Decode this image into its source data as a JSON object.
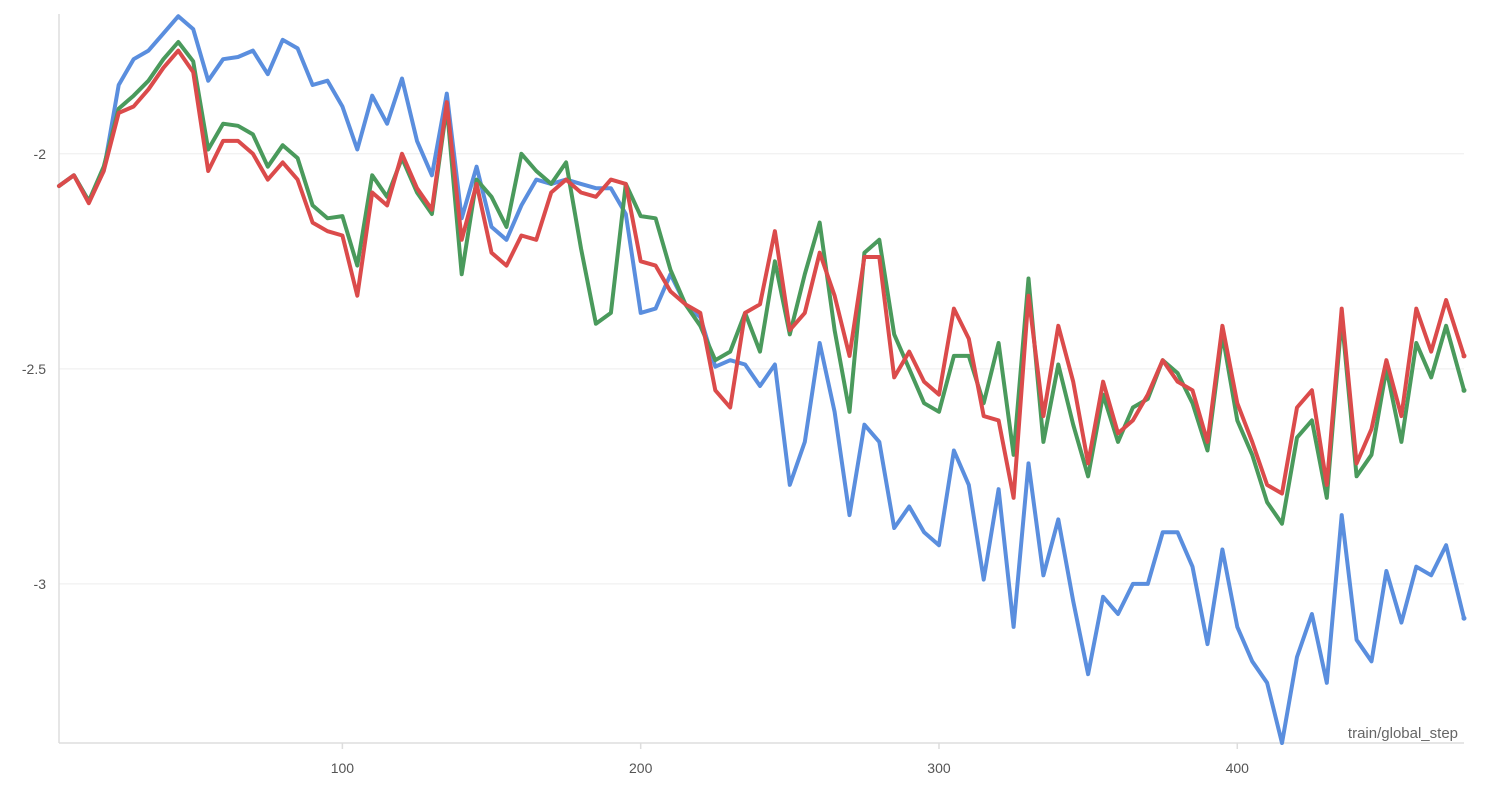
{
  "chart_data": {
    "type": "line",
    "xlabel": "train/global_step",
    "ylabel": "",
    "xlim": [
      5,
      476
    ],
    "ylim": [
      -3.37,
      -1.675
    ],
    "x_ticks": [
      100,
      200,
      300,
      400
    ],
    "x_tick_labels": [
      "100",
      "200",
      "300",
      "400"
    ],
    "y_ticks": [
      -2,
      -2.5,
      -3
    ],
    "y_tick_labels": [
      "-2",
      "-2.5",
      "-3"
    ],
    "grid": "horizontal",
    "legend": "none",
    "series": [
      {
        "color": "#5a8ede",
        "points": [
          [
            5,
            -2.075
          ],
          [
            10,
            -2.05
          ],
          [
            15,
            -2.11
          ],
          [
            20,
            -2.04
          ],
          [
            25,
            -1.84
          ],
          [
            30,
            -1.78
          ],
          [
            35,
            -1.76
          ],
          [
            40,
            -1.72
          ],
          [
            45,
            -1.68
          ],
          [
            50,
            -1.71
          ],
          [
            55,
            -1.83
          ],
          [
            60,
            -1.78
          ],
          [
            65,
            -1.775
          ],
          [
            70,
            -1.76
          ],
          [
            75,
            -1.815
          ],
          [
            80,
            -1.735
          ],
          [
            85,
            -1.755
          ],
          [
            90,
            -1.84
          ],
          [
            95,
            -1.83
          ],
          [
            100,
            -1.89
          ],
          [
            105,
            -1.99
          ],
          [
            110,
            -1.865
          ],
          [
            115,
            -1.93
          ],
          [
            120,
            -1.825
          ],
          [
            125,
            -1.97
          ],
          [
            130,
            -2.05
          ],
          [
            135,
            -1.86
          ],
          [
            140,
            -2.15
          ],
          [
            145,
            -2.03
          ],
          [
            150,
            -2.17
          ],
          [
            155,
            -2.2
          ],
          [
            160,
            -2.12
          ],
          [
            165,
            -2.06
          ],
          [
            170,
            -2.07
          ],
          [
            175,
            -2.06
          ],
          [
            180,
            -2.07
          ],
          [
            185,
            -2.08
          ],
          [
            190,
            -2.08
          ],
          [
            195,
            -2.14
          ],
          [
            200,
            -2.37
          ],
          [
            205,
            -2.36
          ],
          [
            210,
            -2.28
          ],
          [
            215,
            -2.35
          ],
          [
            220,
            -2.38
          ],
          [
            225,
            -2.495
          ],
          [
            230,
            -2.48
          ],
          [
            235,
            -2.49
          ],
          [
            240,
            -2.54
          ],
          [
            245,
            -2.49
          ],
          [
            250,
            -2.77
          ],
          [
            255,
            -2.67
          ],
          [
            260,
            -2.44
          ],
          [
            265,
            -2.6
          ],
          [
            270,
            -2.84
          ],
          [
            275,
            -2.63
          ],
          [
            280,
            -2.67
          ],
          [
            285,
            -2.87
          ],
          [
            290,
            -2.82
          ],
          [
            295,
            -2.88
          ],
          [
            300,
            -2.91
          ],
          [
            305,
            -2.69
          ],
          [
            310,
            -2.77
          ],
          [
            315,
            -2.99
          ],
          [
            320,
            -2.78
          ],
          [
            325,
            -3.1
          ],
          [
            330,
            -2.72
          ],
          [
            335,
            -2.98
          ],
          [
            340,
            -2.85
          ],
          [
            345,
            -3.04
          ],
          [
            350,
            -3.21
          ],
          [
            355,
            -3.03
          ],
          [
            360,
            -3.07
          ],
          [
            365,
            -3.0
          ],
          [
            370,
            -3.0
          ],
          [
            375,
            -2.88
          ],
          [
            380,
            -2.88
          ],
          [
            385,
            -2.96
          ],
          [
            390,
            -3.14
          ],
          [
            395,
            -2.92
          ],
          [
            400,
            -3.1
          ],
          [
            405,
            -3.18
          ],
          [
            410,
            -3.23
          ],
          [
            415,
            -3.37
          ],
          [
            420,
            -3.17
          ],
          [
            425,
            -3.07
          ],
          [
            430,
            -3.23
          ],
          [
            435,
            -2.84
          ],
          [
            440,
            -3.13
          ],
          [
            445,
            -3.18
          ],
          [
            450,
            -2.97
          ],
          [
            455,
            -3.09
          ],
          [
            460,
            -2.96
          ],
          [
            465,
            -2.98
          ],
          [
            470,
            -2.91
          ],
          [
            476,
            -3.08
          ]
        ]
      },
      {
        "color": "#4a9a5c",
        "points": [
          [
            5,
            -2.075
          ],
          [
            10,
            -2.05
          ],
          [
            15,
            -2.11
          ],
          [
            20,
            -2.03
          ],
          [
            25,
            -1.895
          ],
          [
            30,
            -1.865
          ],
          [
            35,
            -1.83
          ],
          [
            40,
            -1.78
          ],
          [
            45,
            -1.74
          ],
          [
            50,
            -1.785
          ],
          [
            55,
            -1.99
          ],
          [
            60,
            -1.93
          ],
          [
            65,
            -1.935
          ],
          [
            70,
            -1.955
          ],
          [
            75,
            -2.03
          ],
          [
            80,
            -1.98
          ],
          [
            85,
            -2.01
          ],
          [
            90,
            -2.12
          ],
          [
            95,
            -2.15
          ],
          [
            100,
            -2.145
          ],
          [
            105,
            -2.26
          ],
          [
            110,
            -2.05
          ],
          [
            115,
            -2.1
          ],
          [
            120,
            -2.01
          ],
          [
            125,
            -2.09
          ],
          [
            130,
            -2.14
          ],
          [
            135,
            -1.89
          ],
          [
            140,
            -2.28
          ],
          [
            145,
            -2.06
          ],
          [
            150,
            -2.1
          ],
          [
            155,
            -2.17
          ],
          [
            160,
            -2.0
          ],
          [
            165,
            -2.04
          ],
          [
            170,
            -2.07
          ],
          [
            175,
            -2.02
          ],
          [
            180,
            -2.22
          ],
          [
            185,
            -2.395
          ],
          [
            190,
            -2.37
          ],
          [
            195,
            -2.07
          ],
          [
            200,
            -2.145
          ],
          [
            205,
            -2.15
          ],
          [
            210,
            -2.27
          ],
          [
            215,
            -2.35
          ],
          [
            220,
            -2.4
          ],
          [
            225,
            -2.48
          ],
          [
            230,
            -2.46
          ],
          [
            235,
            -2.37
          ],
          [
            240,
            -2.46
          ],
          [
            245,
            -2.25
          ],
          [
            250,
            -2.42
          ],
          [
            255,
            -2.28
          ],
          [
            260,
            -2.16
          ],
          [
            265,
            -2.41
          ],
          [
            270,
            -2.6
          ],
          [
            275,
            -2.23
          ],
          [
            280,
            -2.2
          ],
          [
            285,
            -2.42
          ],
          [
            290,
            -2.5
          ],
          [
            295,
            -2.58
          ],
          [
            300,
            -2.6
          ],
          [
            305,
            -2.47
          ],
          [
            310,
            -2.47
          ],
          [
            315,
            -2.58
          ],
          [
            320,
            -2.44
          ],
          [
            325,
            -2.7
          ],
          [
            330,
            -2.29
          ],
          [
            335,
            -2.67
          ],
          [
            340,
            -2.49
          ],
          [
            345,
            -2.63
          ],
          [
            350,
            -2.75
          ],
          [
            355,
            -2.56
          ],
          [
            360,
            -2.67
          ],
          [
            365,
            -2.59
          ],
          [
            370,
            -2.57
          ],
          [
            375,
            -2.48
          ],
          [
            380,
            -2.51
          ],
          [
            385,
            -2.58
          ],
          [
            390,
            -2.69
          ],
          [
            395,
            -2.42
          ],
          [
            400,
            -2.62
          ],
          [
            405,
            -2.7
          ],
          [
            410,
            -2.81
          ],
          [
            415,
            -2.86
          ],
          [
            420,
            -2.66
          ],
          [
            425,
            -2.62
          ],
          [
            430,
            -2.8
          ],
          [
            435,
            -2.38
          ],
          [
            440,
            -2.75
          ],
          [
            445,
            -2.7
          ],
          [
            450,
            -2.5
          ],
          [
            455,
            -2.67
          ],
          [
            460,
            -2.44
          ],
          [
            465,
            -2.52
          ],
          [
            470,
            -2.4
          ],
          [
            476,
            -2.55
          ]
        ]
      },
      {
        "color": "#db4b4b",
        "points": [
          [
            5,
            -2.075
          ],
          [
            10,
            -2.05
          ],
          [
            15,
            -2.115
          ],
          [
            20,
            -2.04
          ],
          [
            25,
            -1.905
          ],
          [
            30,
            -1.89
          ],
          [
            35,
            -1.85
          ],
          [
            40,
            -1.8
          ],
          [
            45,
            -1.76
          ],
          [
            50,
            -1.81
          ],
          [
            55,
            -2.04
          ],
          [
            60,
            -1.97
          ],
          [
            65,
            -1.97
          ],
          [
            70,
            -2.0
          ],
          [
            75,
            -2.06
          ],
          [
            80,
            -2.02
          ],
          [
            85,
            -2.06
          ],
          [
            90,
            -2.16
          ],
          [
            95,
            -2.18
          ],
          [
            100,
            -2.19
          ],
          [
            105,
            -2.33
          ],
          [
            110,
            -2.09
          ],
          [
            115,
            -2.12
          ],
          [
            120,
            -2.0
          ],
          [
            125,
            -2.08
          ],
          [
            130,
            -2.13
          ],
          [
            135,
            -1.88
          ],
          [
            140,
            -2.2
          ],
          [
            145,
            -2.07
          ],
          [
            150,
            -2.23
          ],
          [
            155,
            -2.26
          ],
          [
            160,
            -2.19
          ],
          [
            165,
            -2.2
          ],
          [
            170,
            -2.09
          ],
          [
            175,
            -2.06
          ],
          [
            180,
            -2.09
          ],
          [
            185,
            -2.1
          ],
          [
            190,
            -2.06
          ],
          [
            195,
            -2.07
          ],
          [
            200,
            -2.25
          ],
          [
            205,
            -2.26
          ],
          [
            210,
            -2.32
          ],
          [
            215,
            -2.35
          ],
          [
            220,
            -2.37
          ],
          [
            225,
            -2.55
          ],
          [
            230,
            -2.59
          ],
          [
            235,
            -2.37
          ],
          [
            240,
            -2.35
          ],
          [
            245,
            -2.18
          ],
          [
            250,
            -2.41
          ],
          [
            255,
            -2.37
          ],
          [
            260,
            -2.23
          ],
          [
            265,
            -2.33
          ],
          [
            270,
            -2.47
          ],
          [
            275,
            -2.24
          ],
          [
            280,
            -2.24
          ],
          [
            285,
            -2.52
          ],
          [
            290,
            -2.46
          ],
          [
            295,
            -2.53
          ],
          [
            300,
            -2.56
          ],
          [
            305,
            -2.36
          ],
          [
            310,
            -2.43
          ],
          [
            315,
            -2.61
          ],
          [
            320,
            -2.62
          ],
          [
            325,
            -2.8
          ],
          [
            330,
            -2.33
          ],
          [
            335,
            -2.61
          ],
          [
            340,
            -2.4
          ],
          [
            345,
            -2.53
          ],
          [
            350,
            -2.72
          ],
          [
            355,
            -2.53
          ],
          [
            360,
            -2.65
          ],
          [
            365,
            -2.62
          ],
          [
            370,
            -2.56
          ],
          [
            375,
            -2.48
          ],
          [
            380,
            -2.53
          ],
          [
            385,
            -2.55
          ],
          [
            390,
            -2.67
          ],
          [
            395,
            -2.4
          ],
          [
            400,
            -2.58
          ],
          [
            405,
            -2.67
          ],
          [
            410,
            -2.77
          ],
          [
            415,
            -2.79
          ],
          [
            420,
            -2.59
          ],
          [
            425,
            -2.55
          ],
          [
            430,
            -2.77
          ],
          [
            435,
            -2.36
          ],
          [
            440,
            -2.72
          ],
          [
            445,
            -2.64
          ],
          [
            450,
            -2.48
          ],
          [
            455,
            -2.61
          ],
          [
            460,
            -2.36
          ],
          [
            465,
            -2.46
          ],
          [
            470,
            -2.34
          ],
          [
            476,
            -2.47
          ]
        ]
      }
    ]
  }
}
